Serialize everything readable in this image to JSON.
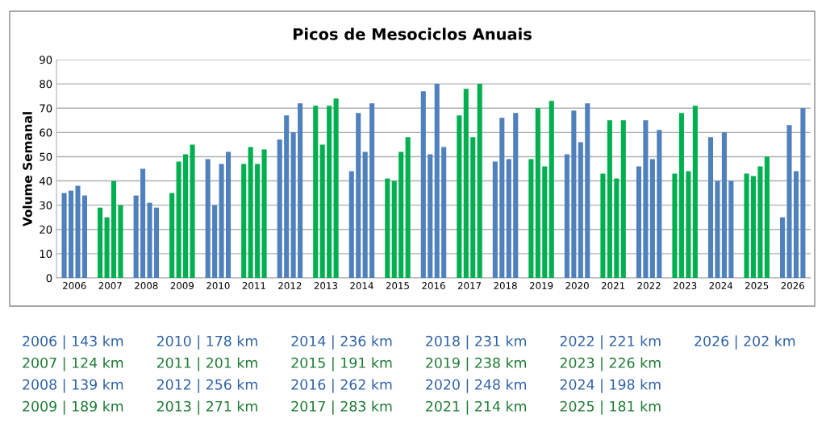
{
  "chart_data": {
    "type": "bar",
    "title": "Picos de Mesociclos Anuais",
    "ylabel": "Volume Semanal",
    "categories": [
      "2006",
      "2007",
      "2008",
      "2009",
      "2010",
      "2011",
      "2012",
      "2013",
      "2014",
      "2015",
      "2016",
      "2017",
      "2018",
      "2019",
      "2020",
      "2021",
      "2022",
      "2023",
      "2024",
      "2025",
      "2026"
    ],
    "series": [
      {
        "colors": [
          "#4f81bd",
          "#00b050",
          "#4f81bd",
          "#00b050",
          "#4f81bd",
          "#00b050",
          "#4f81bd",
          "#00b050",
          "#4f81bd",
          "#00b050",
          "#4f81bd",
          "#00b050",
          "#4f81bd",
          "#00b050",
          "#4f81bd",
          "#00b050",
          "#4f81bd",
          "#00b050",
          "#4f81bd",
          "#00b050",
          "#4f81bd"
        ],
        "values": [
          35,
          29,
          34,
          35,
          49,
          47,
          57,
          71,
          44,
          41,
          77,
          67,
          48,
          49,
          51,
          43,
          46,
          43,
          58,
          43,
          25
        ]
      },
      {
        "colors": [
          "#4f81bd",
          "#00b050",
          "#4f81bd",
          "#00b050",
          "#4f81bd",
          "#00b050",
          "#4f81bd",
          "#00b050",
          "#4f81bd",
          "#00b050",
          "#4f81bd",
          "#00b050",
          "#4f81bd",
          "#00b050",
          "#4f81bd",
          "#00b050",
          "#4f81bd",
          "#00b050",
          "#4f81bd",
          "#00b050",
          "#4f81bd"
        ],
        "values": [
          36,
          25,
          45,
          48,
          30,
          54,
          67,
          55,
          68,
          40,
          51,
          78,
          66,
          70,
          69,
          65,
          65,
          68,
          40,
          42,
          63
        ]
      },
      {
        "colors": [
          "#4f81bd",
          "#00b050",
          "#4f81bd",
          "#00b050",
          "#4f81bd",
          "#00b050",
          "#4f81bd",
          "#00b050",
          "#4f81bd",
          "#00b050",
          "#4f81bd",
          "#00b050",
          "#4f81bd",
          "#00b050",
          "#4f81bd",
          "#00b050",
          "#4f81bd",
          "#00b050",
          "#4f81bd",
          "#00b050",
          "#4f81bd"
        ],
        "values": [
          38,
          40,
          31,
          51,
          47,
          47,
          60,
          71,
          52,
          52,
          80,
          58,
          49,
          46,
          56,
          41,
          49,
          44,
          60,
          46,
          44
        ]
      },
      {
        "colors": [
          "#4f81bd",
          "#00b050",
          "#4f81bd",
          "#00b050",
          "#4f81bd",
          "#00b050",
          "#4f81bd",
          "#00b050",
          "#4f81bd",
          "#00b050",
          "#4f81bd",
          "#00b050",
          "#4f81bd",
          "#00b050",
          "#4f81bd",
          "#00b050",
          "#4f81bd",
          "#00b050",
          "#4f81bd",
          "#00b050",
          "#4f81bd"
        ],
        "values": [
          34,
          30,
          29,
          55,
          52,
          53,
          72,
          74,
          72,
          58,
          54,
          80,
          68,
          73,
          72,
          65,
          61,
          71,
          40,
          50,
          70
        ]
      }
    ],
    "ylim": [
      0,
      90
    ],
    "yticks": [
      0,
      10,
      20,
      30,
      40,
      50,
      60,
      70,
      80,
      90
    ],
    "grid": "y",
    "annotations": [
      "2006 | 143 km",
      "2007 | 124 km",
      "2008 | 139 km",
      "2009 | 189 km",
      "2010 | 178 km",
      "2011 | 201 km",
      "2012 | 256 km",
      "2013 | 271 km",
      "2014 | 236 km",
      "2015 | 191 km",
      "2016 | 262 km",
      "2017 | 283 km",
      "2018 | 231 km",
      "2019 | 238 km",
      "2020 | 248 km",
      "2021 | 214 km",
      "2022 | 221 km",
      "2023 | 226 km",
      "2024 | 198 km",
      "2025 | 181 km",
      "2026 | 202 km"
    ]
  }
}
